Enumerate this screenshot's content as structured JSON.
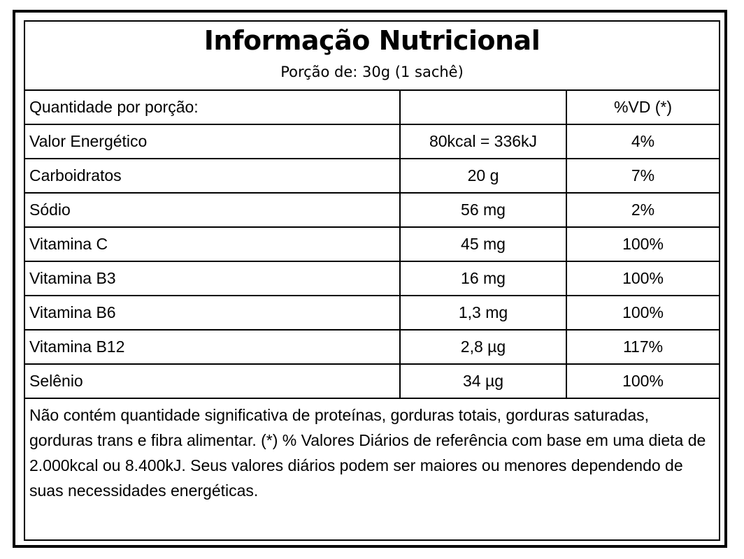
{
  "label": {
    "title": "Informação Nutricional",
    "serving": "Porção de: 30g (1 sachê)",
    "header_row": {
      "name": "Quantidade por porção:",
      "amount": "",
      "dv": "%VD (*)"
    },
    "rows": [
      {
        "name": "Valor Energético",
        "amount": "80kcal = 336kJ",
        "dv": "4%"
      },
      {
        "name": "Carboidratos",
        "amount": "20 g",
        "dv": "7%"
      },
      {
        "name": "Sódio",
        "amount": "56 mg",
        "dv": "2%"
      },
      {
        "name": "Vitamina C",
        "amount": "45 mg",
        "dv": "100%"
      },
      {
        "name": "Vitamina B3",
        "amount": "16 mg",
        "dv": "100%"
      },
      {
        "name": "Vitamina B6",
        "amount": "1,3 mg",
        "dv": "100%"
      },
      {
        "name": "Vitamina B12",
        "amount": "2,8 µg",
        "dv": "117%"
      },
      {
        "name": "Selênio",
        "amount": "34 µg",
        "dv": "100%"
      }
    ],
    "footnote": "Não contém quantidade significativa de proteínas, gorduras totais, gorduras saturadas, gorduras trans e fibra alimentar. (*) % Valores Diários de referência com base em uma dieta de 2.000kcal ou 8.400kJ. Seus valores diários podem ser maiores ou menores dependendo de suas necessidades energéticas."
  },
  "colors": {
    "border": "#000000",
    "background": "#ffffff",
    "text": "#000000"
  }
}
